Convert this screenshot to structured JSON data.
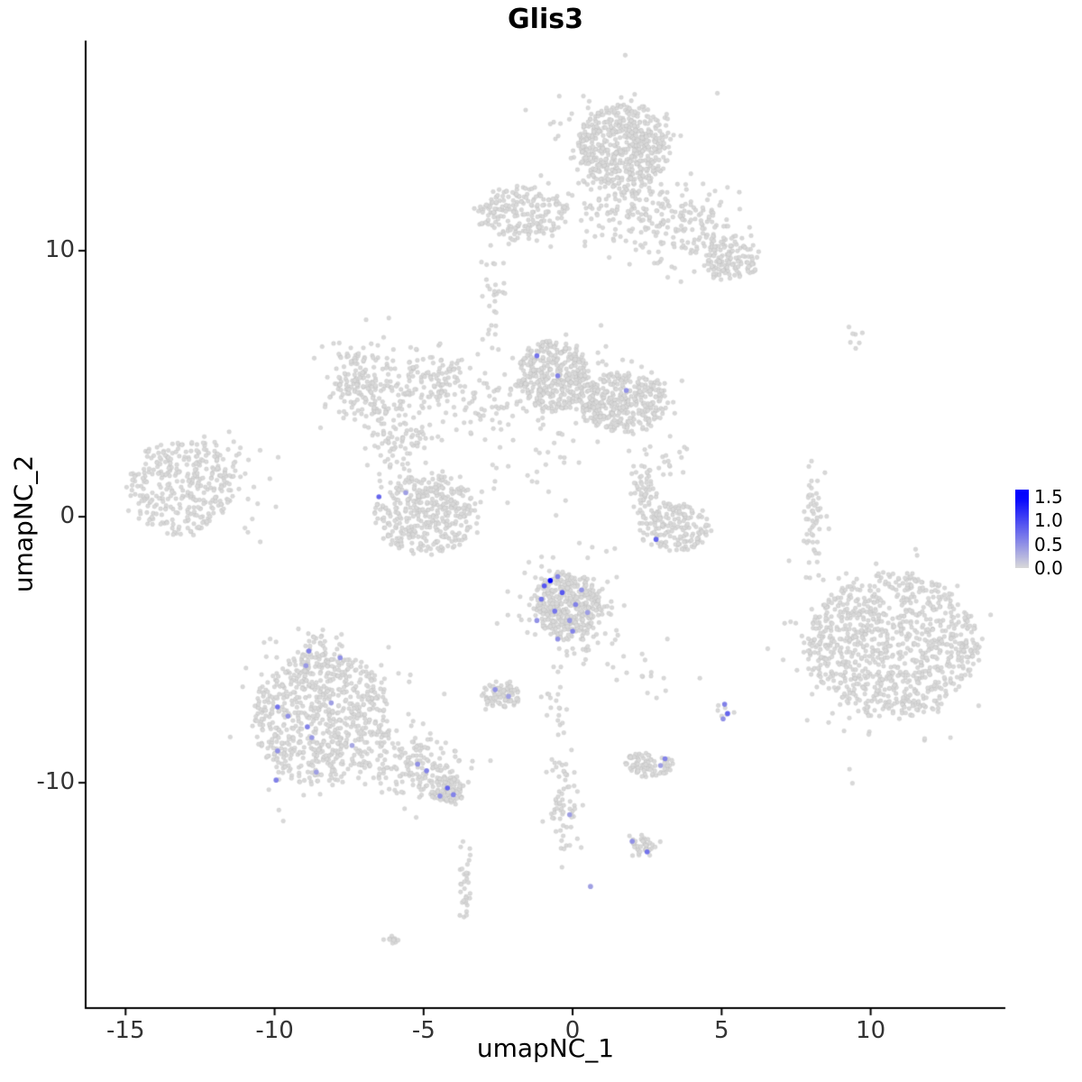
{
  "chart_data": {
    "type": "scatter",
    "title": "Glis3",
    "xlabel": "umapNC_1",
    "ylabel": "umapNC_2",
    "x_ticks": [
      -15,
      -10,
      -5,
      0,
      5,
      10
    ],
    "y_ticks": [
      -10,
      0,
      10
    ],
    "xlim": [
      -16.34,
      14.52
    ],
    "ylim": [
      -18.47,
      17.9
    ],
    "grid": false,
    "legend_position": "right",
    "point_radius_px": 2.4,
    "expressing_point_radius_px": 2.8,
    "colors": {
      "background_point": "#d9d9d9",
      "low": "#d9d9d9",
      "high": "#0000ff",
      "axis": "#000000"
    },
    "colorbar": {
      "tick_labels": [
        "1.5",
        "1.0",
        "0.5",
        "0.0"
      ],
      "tick_values": [
        1.5,
        1.0,
        0.5,
        0.0
      ],
      "vmin": 0.0,
      "vmax": 1.65,
      "color_scale_max": 1.5
    },
    "background_clusters": [
      {
        "cx": 1.7,
        "cy": 13.9,
        "sx": 1.5,
        "sy": 1.6,
        "n": 470,
        "shape": "uniform"
      },
      {
        "cx": 1.6,
        "cy": 13.6,
        "sx": 1.2,
        "sy": 1.3,
        "n": 130,
        "shape": "gauss"
      },
      {
        "cx": 2.2,
        "cy": 11.4,
        "sx": 1.2,
        "sy": 0.7,
        "n": 160,
        "shape": "gauss"
      },
      {
        "cx": 4.2,
        "cy": 10.6,
        "sx": 0.8,
        "sy": 0.7,
        "n": 110,
        "shape": "gauss"
      },
      {
        "cx": 5.3,
        "cy": 9.7,
        "sx": 0.9,
        "sy": 0.8,
        "n": 110,
        "shape": "uniform"
      },
      {
        "cx": -1.7,
        "cy": 11.4,
        "sx": 1.5,
        "sy": 1.0,
        "n": 200,
        "shape": "uniform"
      },
      {
        "cx": -2.6,
        "cy": 8.3,
        "sx": 0.25,
        "sy": 1.0,
        "n": 30,
        "shape": "gauss"
      },
      {
        "cx": -0.7,
        "cy": 5.3,
        "sx": 1.2,
        "sy": 1.3,
        "n": 330,
        "shape": "uniform"
      },
      {
        "cx": 1.7,
        "cy": 4.3,
        "sx": 1.5,
        "sy": 1.1,
        "n": 330,
        "shape": "uniform"
      },
      {
        "cx": 0.4,
        "cy": 4.6,
        "sx": 1.5,
        "sy": 1.0,
        "n": 140,
        "shape": "gauss"
      },
      {
        "cx": -7.2,
        "cy": 5.0,
        "sx": 0.55,
        "sy": 0.8,
        "n": 150,
        "shape": "gauss"
      },
      {
        "cx": -5.9,
        "cy": 4.6,
        "sx": 0.8,
        "sy": 0.8,
        "n": 120,
        "shape": "gauss"
      },
      {
        "cx": -4.4,
        "cy": 5.4,
        "sx": 0.55,
        "sy": 0.5,
        "n": 80,
        "shape": "gauss"
      },
      {
        "cx": -5.7,
        "cy": 2.8,
        "sx": 0.5,
        "sy": 0.5,
        "n": 60,
        "shape": "gauss"
      },
      {
        "cx": -3.0,
        "cy": 3.9,
        "sx": 0.5,
        "sy": 0.6,
        "n": 45,
        "shape": "gauss"
      },
      {
        "cx": -13.2,
        "cy": 1.1,
        "sx": 1.8,
        "sy": 1.8,
        "n": 300,
        "shape": "uniform"
      },
      {
        "cx": -12.0,
        "cy": 1.7,
        "sx": 0.8,
        "sy": 0.6,
        "n": 60,
        "shape": "gauss"
      },
      {
        "cx": -4.9,
        "cy": 0.1,
        "sx": 1.7,
        "sy": 1.5,
        "n": 300,
        "shape": "uniform"
      },
      {
        "cx": -4.9,
        "cy": 0.2,
        "sx": 0.9,
        "sy": 0.8,
        "n": 90,
        "shape": "gauss"
      },
      {
        "cx": 2.4,
        "cy": 1.1,
        "sx": 0.25,
        "sy": 0.6,
        "n": 60,
        "shape": "gauss"
      },
      {
        "cx": 3.4,
        "cy": -0.4,
        "sx": 1.2,
        "sy": 0.9,
        "n": 170,
        "shape": "uniform"
      },
      {
        "cx": -0.2,
        "cy": -3.3,
        "sx": 1.1,
        "sy": 1.2,
        "n": 330,
        "shape": "uniform"
      },
      {
        "cx": 0.0,
        "cy": -3.6,
        "sx": 0.9,
        "sy": 1.0,
        "n": 140,
        "shape": "gauss"
      },
      {
        "cx": -2.4,
        "cy": -6.7,
        "sx": 0.6,
        "sy": 0.5,
        "n": 85,
        "shape": "uniform"
      },
      {
        "cx": -8.4,
        "cy": -7.6,
        "sx": 2.3,
        "sy": 2.5,
        "n": 620,
        "shape": "uniform"
      },
      {
        "cx": -8.7,
        "cy": -5.2,
        "sx": 0.45,
        "sy": 0.5,
        "n": 70,
        "shape": "gauss"
      },
      {
        "cx": -8.2,
        "cy": -7.8,
        "sx": 1.4,
        "sy": 1.5,
        "n": 120,
        "shape": "gauss"
      },
      {
        "cx": -5.1,
        "cy": -9.5,
        "sx": 0.8,
        "sy": 0.6,
        "n": 170,
        "shape": "gauss"
      },
      {
        "cx": -4.2,
        "cy": -10.3,
        "sx": 0.55,
        "sy": 0.5,
        "n": 80,
        "shape": "uniform"
      },
      {
        "cx": 10.7,
        "cy": -4.8,
        "sx": 2.9,
        "sy": 2.7,
        "n": 780,
        "shape": "uniform"
      },
      {
        "cx": 10.3,
        "cy": -5.2,
        "sx": 1.6,
        "sy": 1.5,
        "n": 200,
        "shape": "gauss"
      },
      {
        "cx": 8.1,
        "cy": -0.1,
        "sx": 0.18,
        "sy": 0.85,
        "n": 55,
        "shape": "gauss"
      },
      {
        "cx": 9.5,
        "cy": 6.7,
        "sx": 0.3,
        "sy": 0.25,
        "n": 7,
        "shape": "gauss"
      },
      {
        "cx": 2.5,
        "cy": -9.3,
        "sx": 0.8,
        "sy": 0.45,
        "n": 85,
        "shape": "uniform"
      },
      {
        "cx": 2.3,
        "cy": -12.4,
        "sx": 0.55,
        "sy": 0.35,
        "n": 45,
        "shape": "uniform"
      },
      {
        "cx": -0.3,
        "cy": -10.8,
        "sx": 0.3,
        "sy": 1.0,
        "n": 65,
        "shape": "gauss"
      },
      {
        "cx": -0.5,
        "cy": -7.6,
        "sx": 0.25,
        "sy": 0.9,
        "n": 22,
        "shape": "gauss"
      },
      {
        "cx": -3.6,
        "cy": -13.9,
        "sx": 0.12,
        "sy": 0.75,
        "n": 32,
        "shape": "gauss"
      },
      {
        "cx": -6.05,
        "cy": -15.9,
        "sx": 0.25,
        "sy": 0.12,
        "n": 12,
        "shape": "uniform"
      },
      {
        "cx": 3.4,
        "cy": 2.2,
        "sx": 0.3,
        "sy": 0.5,
        "n": 12,
        "shape": "gauss"
      },
      {
        "cx": 2.6,
        "cy": -5.5,
        "sx": 0.7,
        "sy": 0.8,
        "n": 14,
        "shape": "gauss"
      },
      {
        "cx": 5.1,
        "cy": -7.3,
        "sx": 0.15,
        "sy": 0.3,
        "n": 6,
        "shape": "gauss"
      },
      {
        "cx": -1.5,
        "cy": 2.0,
        "sx": 1.0,
        "sy": 1.0,
        "n": 22,
        "shape": "gauss"
      },
      {
        "cx": -10.9,
        "cy": 0.6,
        "sx": 0.5,
        "sy": 0.9,
        "n": 10,
        "shape": "gauss"
      }
    ],
    "expressing_points": [
      [
        -1.2,
        6.05,
        0.7
      ],
      [
        -0.5,
        5.3,
        0.6
      ],
      [
        1.8,
        4.75,
        0.5
      ],
      [
        -6.5,
        0.75,
        0.8
      ],
      [
        -5.6,
        0.9,
        0.4
      ],
      [
        2.8,
        -0.85,
        0.8
      ],
      [
        -0.75,
        -2.4,
        1.6
      ],
      [
        -0.95,
        -2.6,
        0.9
      ],
      [
        -0.5,
        -2.25,
        0.6
      ],
      [
        -1.05,
        -3.1,
        0.7
      ],
      [
        -0.35,
        -2.85,
        0.9
      ],
      [
        0.1,
        -3.3,
        0.6
      ],
      [
        -0.6,
        -3.55,
        0.7
      ],
      [
        0.3,
        -2.75,
        0.5
      ],
      [
        -1.2,
        -3.9,
        0.5
      ],
      [
        0.0,
        -4.3,
        0.6
      ],
      [
        -0.5,
        -4.6,
        0.5
      ],
      [
        0.5,
        -3.6,
        0.4
      ],
      [
        -0.1,
        -3.9,
        0.45
      ],
      [
        -2.6,
        -6.5,
        0.5
      ],
      [
        -2.15,
        -6.75,
        0.4
      ],
      [
        -8.85,
        -5.05,
        0.6
      ],
      [
        -8.95,
        -5.6,
        0.45
      ],
      [
        -7.8,
        -5.3,
        0.5
      ],
      [
        -9.9,
        -7.15,
        0.7
      ],
      [
        -9.55,
        -7.5,
        0.5
      ],
      [
        -8.9,
        -7.9,
        0.6
      ],
      [
        -9.9,
        -8.8,
        0.5
      ],
      [
        -8.75,
        -8.3,
        0.45
      ],
      [
        -8.1,
        -7.0,
        0.4
      ],
      [
        -9.95,
        -9.9,
        0.6
      ],
      [
        -8.6,
        -9.6,
        0.4
      ],
      [
        -7.4,
        -8.6,
        0.35
      ],
      [
        -5.2,
        -9.3,
        0.5
      ],
      [
        -4.9,
        -9.55,
        0.6
      ],
      [
        -4.2,
        -10.2,
        0.8
      ],
      [
        -4.0,
        -10.45,
        0.6
      ],
      [
        -4.45,
        -10.5,
        0.5
      ],
      [
        5.1,
        -7.05,
        0.6
      ],
      [
        5.2,
        -7.4,
        0.8
      ],
      [
        5.05,
        -7.6,
        0.5
      ],
      [
        3.1,
        -9.1,
        0.6
      ],
      [
        2.95,
        -9.35,
        0.4
      ],
      [
        2.0,
        -12.2,
        0.5
      ],
      [
        2.5,
        -12.6,
        0.7
      ],
      [
        0.6,
        -13.9,
        0.4
      ],
      [
        -0.1,
        -11.2,
        0.4
      ]
    ]
  }
}
